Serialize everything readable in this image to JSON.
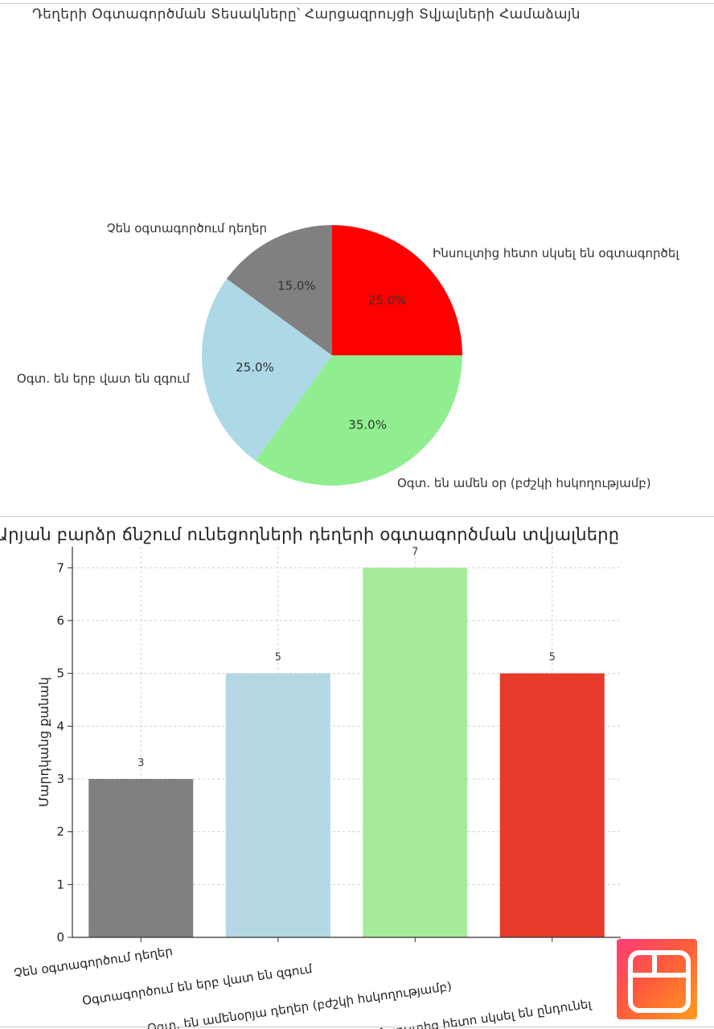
{
  "chart_data": [
    {
      "type": "pie",
      "title": "Դեղերի Օգտագործման Տեսակները՝ Հարցազրույցի Տվյալների Համաձայն",
      "start_angle": "top, clockwise",
      "slices": [
        {
          "label": "Ինսուլտից հետո սկսել են օգտագործել",
          "value": 25.0,
          "display": "25.0%",
          "color": "#ff0000"
        },
        {
          "label": "Օգտ. են ամեն օր (բժշկի հսկողությամբ)",
          "value": 35.0,
          "display": "35.0%",
          "color": "#90ee90"
        },
        {
          "label": "Օգտ. են երբ վատ են զգում",
          "value": 25.0,
          "display": "25.0%",
          "color": "#add8e6"
        },
        {
          "label": "Չեն օգտագործում դեղեր",
          "value": 15.0,
          "display": "15.0%",
          "color": "#808080"
        }
      ]
    },
    {
      "type": "bar",
      "title": "Արյան բարձր ճնշում ունեցողների դեղերի օգտագործման տվյալները",
      "ylabel": "Մարդկանց քանակ",
      "xlabel": "",
      "ylim": [
        0,
        7.4
      ],
      "yticks": [
        0,
        1,
        2,
        3,
        4,
        5,
        6,
        7
      ],
      "grid": true,
      "categories": [
        "Չեն օգտագործում դեղեր",
        "Օգտագործում են երբ վատ են զգում",
        "Օգտ. են ամենօրյա դեղեր (բժշկի հսկողությամբ)",
        "Ինսուլտից հետո սկսել են ընդունել"
      ],
      "values": [
        3,
        5,
        7,
        5
      ],
      "colors": [
        "#808080",
        "#b4d7e4",
        "#a6ec98",
        "#e83a2a"
      ]
    }
  ]
}
